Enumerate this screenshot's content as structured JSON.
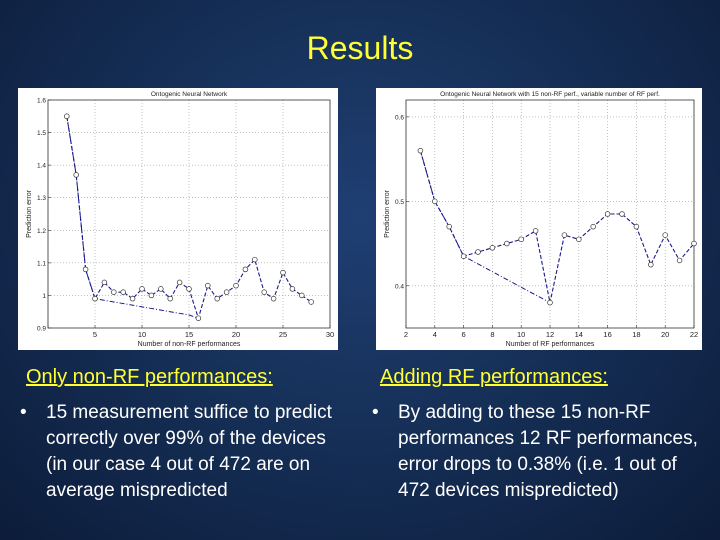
{
  "slide": {
    "title": "Results"
  },
  "left": {
    "subheading": "Only non-RF performances:",
    "bullet": "15 measurement suffice to predict correctly over 99% of the devices (in our case 4 out of 472 are on average mispredicted"
  },
  "right": {
    "subheading": "Adding RF performances:",
    "bullet": "By adding to these 15 non-RF performances 12 RF performances, error drops to 0.38% (i.e. 1 out of 472 devices mispredicted)"
  },
  "bullet_symbol": "•",
  "colors": {
    "background": "#163058",
    "title": "#ffff33",
    "text": "#ffffff",
    "series": "#1a1a8c"
  },
  "chart_data": [
    {
      "type": "line",
      "title": "Ontogenic Neural Network",
      "xlabel": "Number of non-RF performances",
      "ylabel": "Prediction error",
      "xlim": [
        0,
        30
      ],
      "ylim": [
        0.9,
        1.6
      ],
      "xticks": [
        0,
        5,
        10,
        15,
        20,
        25,
        30
      ],
      "xtick_labels": [
        "",
        "5",
        "10",
        "15",
        "20",
        "25",
        "30"
      ],
      "yticks": [
        0.9,
        1.0,
        1.1,
        1.2,
        1.3,
        1.4,
        1.5,
        1.6
      ],
      "ytick_labels": [
        "0.9",
        "1",
        "1.1",
        "1.2",
        "1.3",
        "1.4",
        "1.5",
        "1.6"
      ],
      "grid": true,
      "markers_x": [
        2,
        3,
        4,
        5,
        6,
        7,
        8,
        9,
        10,
        11,
        12,
        13,
        14,
        15,
        16,
        17,
        18,
        19,
        20,
        21,
        22,
        23,
        24,
        25,
        26,
        27,
        28
      ],
      "markers_y": [
        1.55,
        1.37,
        1.08,
        0.99,
        1.04,
        1.01,
        1.01,
        0.99,
        1.02,
        1.0,
        1.02,
        0.99,
        1.04,
        1.02,
        0.93,
        1.03,
        0.99,
        1.01,
        1.03,
        1.08,
        1.11,
        1.01,
        0.99,
        1.07,
        1.02,
        1.0,
        0.98
      ],
      "lower_line_x": [
        2,
        3,
        4,
        5,
        15,
        16
      ],
      "lower_line_y": [
        1.55,
        1.37,
        1.08,
        0.99,
        0.94,
        0.93
      ]
    },
    {
      "type": "line",
      "title": "Ontogenic Neural Network with 15 non-RF perf., variable number of RF perf.",
      "xlabel": "Number of RF performances",
      "ylabel": "Prediction error",
      "xlim": [
        2,
        22
      ],
      "ylim": [
        0.35,
        0.62
      ],
      "xticks": [
        2,
        4,
        6,
        8,
        10,
        12,
        14,
        16,
        18,
        20,
        22
      ],
      "xtick_labels": [
        "2",
        "4",
        "6",
        "8",
        "10",
        "12",
        "14",
        "16",
        "18",
        "20",
        "22"
      ],
      "yticks": [
        0.4,
        0.5,
        0.6
      ],
      "ytick_labels": [
        "0.4",
        "0.5",
        "0.6"
      ],
      "grid": true,
      "markers_x": [
        3,
        4,
        5,
        6,
        7,
        8,
        9,
        10,
        11,
        12,
        13,
        14,
        15,
        16,
        17,
        18,
        19,
        20,
        21,
        22
      ],
      "markers_y": [
        0.56,
        0.5,
        0.47,
        0.435,
        0.44,
        0.445,
        0.45,
        0.455,
        0.465,
        0.38,
        0.46,
        0.455,
        0.47,
        0.485,
        0.485,
        0.47,
        0.425,
        0.46,
        0.43,
        0.45
      ],
      "lower_line_x": [
        3,
        4,
        5,
        6,
        12
      ],
      "lower_line_y": [
        0.56,
        0.5,
        0.47,
        0.435,
        0.38
      ]
    }
  ]
}
